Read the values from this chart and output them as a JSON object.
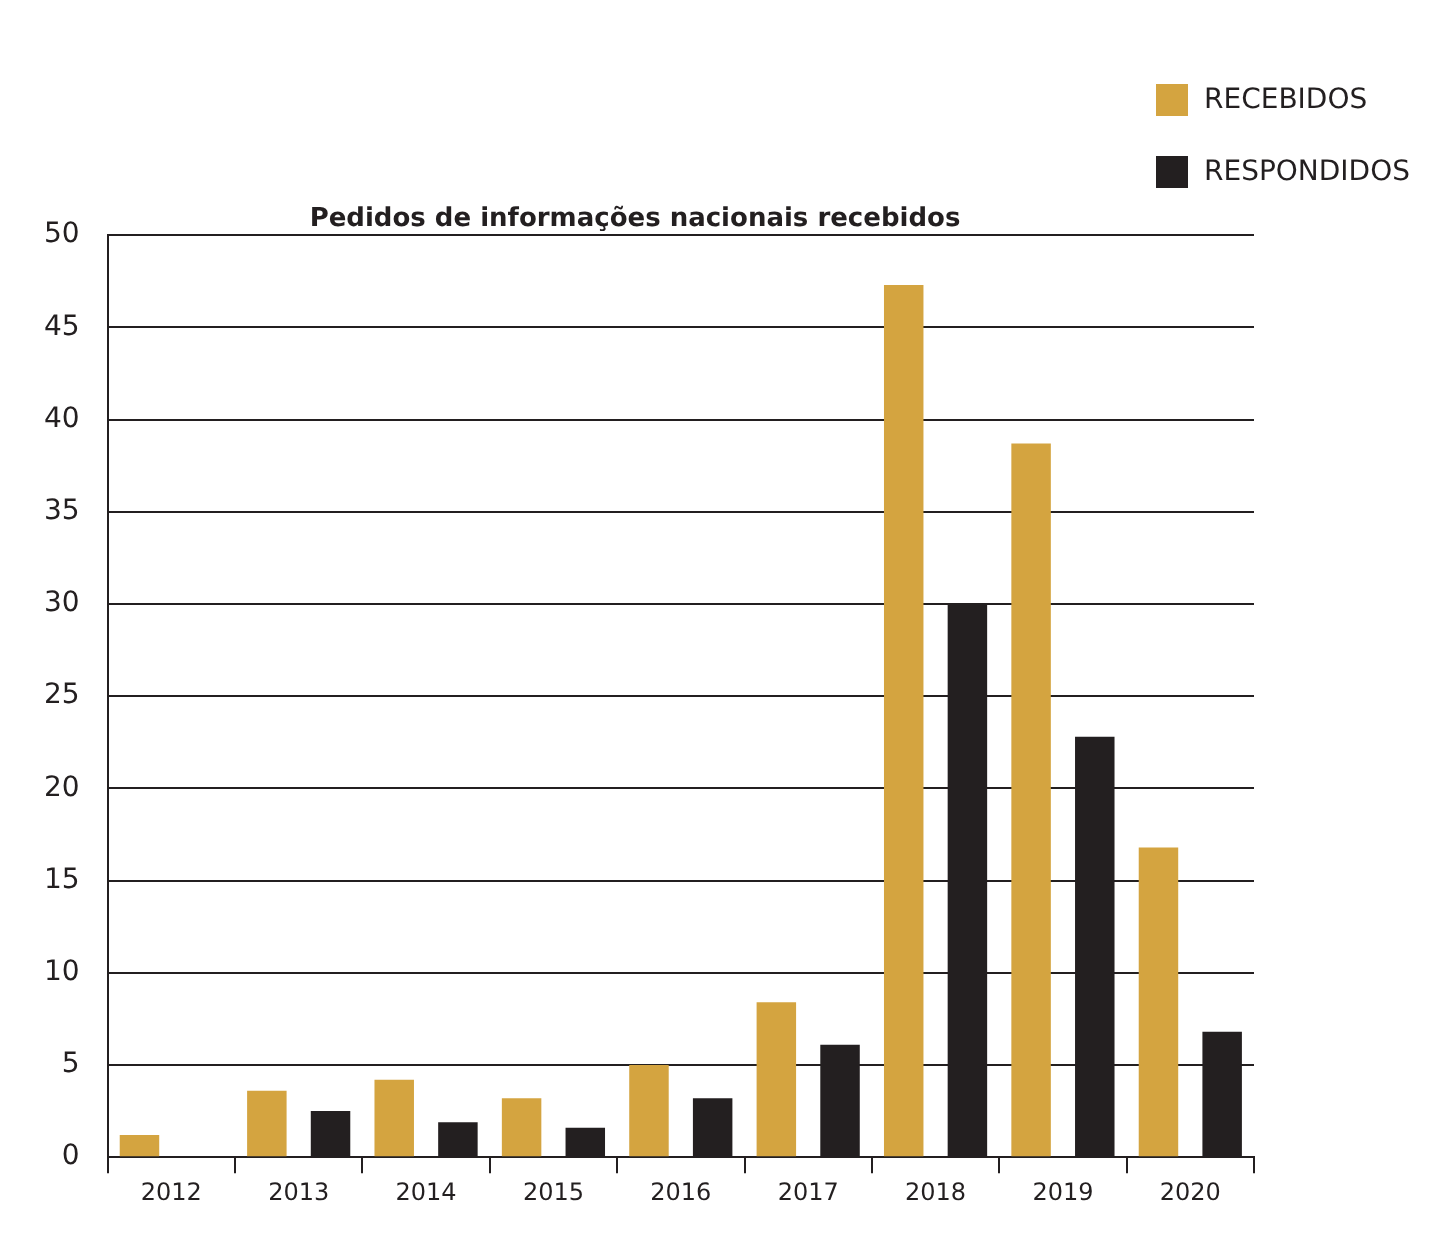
{
  "chart_data": {
    "type": "bar",
    "title": "Pedidos de informações nacionais recebidos",
    "categories": [
      "2012",
      "2013",
      "2014",
      "2015",
      "2016",
      "2017",
      "2018",
      "2019",
      "2020"
    ],
    "series": [
      {
        "name": "RECEBIDOS",
        "color": "#d4a440",
        "values": [
          1.2,
          3.6,
          4.2,
          3.2,
          5.0,
          8.4,
          47.3,
          38.7,
          16.8
        ]
      },
      {
        "name": "RESPONDIDOS",
        "color": "#231f20",
        "values": [
          0,
          2.5,
          1.9,
          1.6,
          3.2,
          6.1,
          30,
          22.8,
          6.8
        ]
      }
    ],
    "ylim": [
      0,
      50
    ],
    "yticks": [
      0,
      5,
      10,
      15,
      20,
      25,
      30,
      35,
      40,
      45,
      50
    ],
    "grid": "y",
    "legend": "top right"
  }
}
